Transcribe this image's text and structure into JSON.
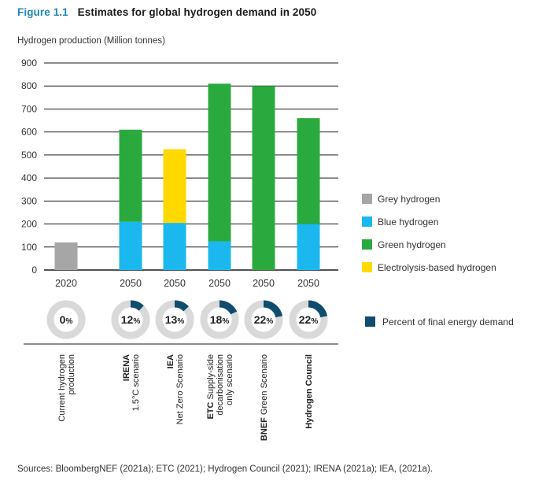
{
  "figure": {
    "label": "Figure 1.1",
    "title": "Estimates for global hydrogen demand in 2050",
    "sources": "Sources: BloombergNEF (2021a); ETC (2021); Hydrogen Council (2021); IRENA (2021a); IEA, (2021a)."
  },
  "chart_data": {
    "type": "bar",
    "stacked": true,
    "ylabel": "Hydrogen production (Million tonnes)",
    "ylim": [
      0,
      900
    ],
    "yticks": [
      0,
      100,
      200,
      300,
      400,
      500,
      600,
      700,
      800,
      900
    ],
    "grid": true,
    "legend_position": "right",
    "categories": [
      {
        "year": "2020",
        "pct": "0",
        "name_bold": "",
        "name_lines": [
          "Current hydrogen",
          "production"
        ]
      },
      {
        "year": "2050",
        "pct": "12",
        "name_bold": "IRENA",
        "name_lines": [
          "1.5°C scenario"
        ]
      },
      {
        "year": "2050",
        "pct": "13",
        "name_bold": "IEA",
        "name_lines": [
          "Net Zero Scenario"
        ]
      },
      {
        "year": "2050",
        "pct": "18",
        "name_bold": "ETC",
        "name_lines": [
          " Supply-side",
          "decarbonisation",
          "only scenario"
        ]
      },
      {
        "year": "2050",
        "pct": "22",
        "name_bold": "BNEF",
        "name_lines": [
          " Green Scenario"
        ]
      },
      {
        "year": "2050",
        "pct": "22",
        "name_bold": "Hydrogen Council",
        "name_lines": []
      }
    ],
    "series": [
      {
        "name": "Grey hydrogen",
        "color": "#a6a6a6",
        "values": [
          120,
          0,
          0,
          0,
          0,
          0
        ]
      },
      {
        "name": "Blue hydrogen",
        "color": "#1ab8ee",
        "values": [
          0,
          210,
          205,
          125,
          0,
          200
        ]
      },
      {
        "name": "Green hydrogen",
        "color": "#2aaa3e",
        "values": [
          0,
          400,
          0,
          685,
          800,
          460
        ]
      },
      {
        "name": "Electrolysis-based hydrogen",
        "color": "#ffd900",
        "values": [
          0,
          0,
          320,
          0,
          0,
          0
        ]
      }
    ],
    "percent_legend": {
      "name": "Percent of final energy demand",
      "color": "#0f4c6e",
      "track_color": "#d9d9d9"
    },
    "percent_values": [
      0,
      12,
      13,
      18,
      22,
      22
    ],
    "percent_suffix": "%"
  }
}
